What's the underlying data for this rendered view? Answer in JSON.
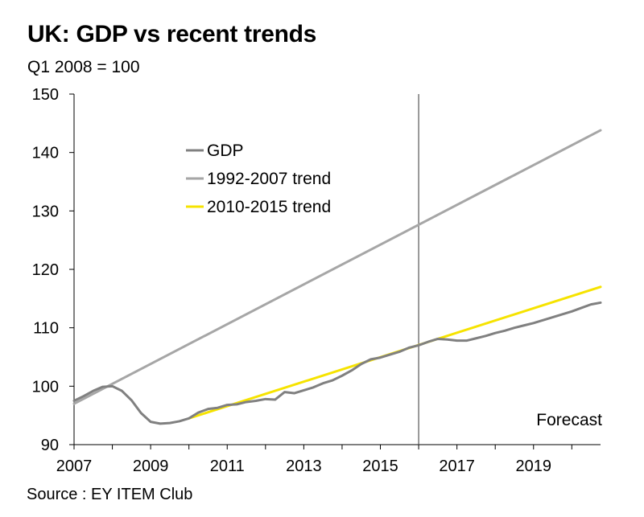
{
  "title": "UK: GDP vs recent trends",
  "subtitle": "Q1 2008 = 100",
  "source": "Source : EY ITEM Club",
  "chart_data": {
    "type": "line",
    "title": "UK: GDP vs recent trends",
    "subtitle": "Q1 2008 = 100",
    "xlim": [
      2007,
      2020.75
    ],
    "ylim": [
      90,
      150
    ],
    "x_ticks": [
      2007,
      2008,
      2009,
      2010,
      2011,
      2012,
      2013,
      2014,
      2015,
      2016,
      2017,
      2018,
      2019,
      2020
    ],
    "x_tick_labels": [
      "2007",
      "2009",
      "2011",
      "2013",
      "2015",
      "2017",
      "2019"
    ],
    "x_tick_label_positions": [
      2007,
      2009,
      2011,
      2013,
      2015,
      2017,
      2019
    ],
    "y_ticks": [
      90,
      100,
      110,
      120,
      130,
      140,
      150
    ],
    "y_tick_labels": [
      "90",
      "100",
      "110",
      "120",
      "130",
      "140",
      "150"
    ],
    "grid": false,
    "legend_position": "top-left",
    "forecast_divider_x": 2016.0,
    "forecast_label": "Forecast",
    "series": [
      {
        "name": "GDP",
        "color": "#808080",
        "x": [
          2007.0,
          2007.25,
          2007.5,
          2007.75,
          2008.0,
          2008.25,
          2008.5,
          2008.75,
          2009.0,
          2009.25,
          2009.5,
          2009.75,
          2010.0,
          2010.25,
          2010.5,
          2010.75,
          2011.0,
          2011.25,
          2011.5,
          2011.75,
          2012.0,
          2012.25,
          2012.5,
          2012.75,
          2013.0,
          2013.25,
          2013.5,
          2013.75,
          2014.0,
          2014.25,
          2014.5,
          2014.75,
          2015.0,
          2015.25,
          2015.5,
          2015.75,
          2016.0,
          2016.25,
          2016.5,
          2016.75,
          2017.0,
          2017.25,
          2017.5,
          2017.75,
          2018.0,
          2018.25,
          2018.5,
          2018.75,
          2019.0,
          2019.25,
          2019.5,
          2019.75,
          2020.0,
          2020.25,
          2020.5,
          2020.75
        ],
        "values": [
          97.5,
          98.3,
          99.2,
          99.9,
          100.0,
          99.2,
          97.6,
          95.4,
          93.9,
          93.6,
          93.7,
          94.0,
          94.5,
          95.5,
          96.1,
          96.3,
          96.8,
          96.9,
          97.3,
          97.5,
          97.8,
          97.7,
          99.0,
          98.8,
          99.3,
          99.8,
          100.5,
          101.0,
          101.8,
          102.7,
          103.8,
          104.6,
          104.9,
          105.4,
          105.9,
          106.6,
          107.0,
          107.6,
          108.1,
          108.0,
          107.8,
          107.8,
          108.2,
          108.6,
          109.1,
          109.5,
          110.0,
          110.4,
          110.8,
          111.3,
          111.8,
          112.3,
          112.8,
          113.4,
          114.0,
          114.3
        ]
      },
      {
        "name": "1992-2007 trend",
        "color": "#a6a6a6",
        "x": [
          2007.0,
          2020.75
        ],
        "values": [
          97.0,
          143.8
        ]
      },
      {
        "name": "2010-2015 trend",
        "color": "#f6e300",
        "x": [
          2010.0,
          2020.75
        ],
        "values": [
          94.5,
          117.0
        ]
      }
    ]
  }
}
